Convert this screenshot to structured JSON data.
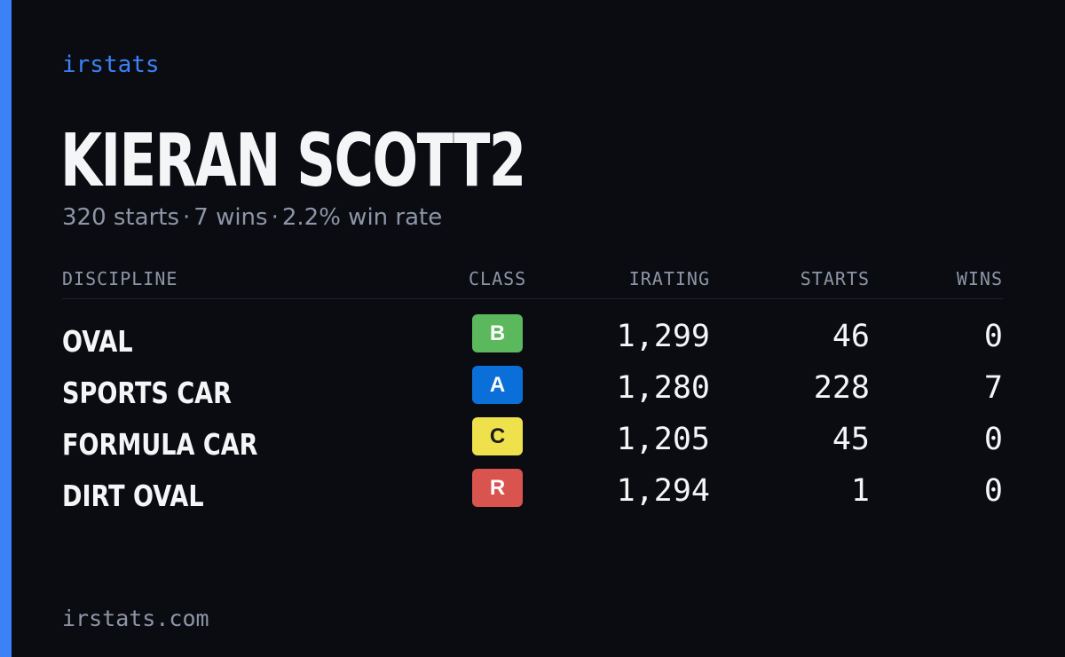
{
  "brand": "irstats",
  "driver": {
    "name": "KIERAN SCOTT2",
    "starts_text": "320 starts",
    "wins_text": "7 wins",
    "win_rate_text": "2.2% win rate",
    "separator": "·"
  },
  "table": {
    "headers": {
      "discipline": "DISCIPLINE",
      "class": "CLASS",
      "irating": "IRATING",
      "starts": "STARTS",
      "wins": "WINS"
    },
    "rows": [
      {
        "discipline": "OVAL",
        "class": "B",
        "class_color": "#5cb85c",
        "class_text_color": "#ffffff",
        "irating": "1,299",
        "starts": "46",
        "wins": "0"
      },
      {
        "discipline": "SPORTS CAR",
        "class": "A",
        "class_color": "#0a6fd8",
        "class_text_color": "#ffffff",
        "irating": "1,280",
        "starts": "228",
        "wins": "7"
      },
      {
        "discipline": "FORMULA CAR",
        "class": "C",
        "class_color": "#efe14c",
        "class_text_color": "#1a1a1a",
        "irating": "1,205",
        "starts": "45",
        "wins": "0"
      },
      {
        "discipline": "DIRT OVAL",
        "class": "R",
        "class_color": "#d9534f",
        "class_text_color": "#ffffff",
        "irating": "1,294",
        "starts": "1",
        "wins": "0"
      }
    ]
  },
  "footer": "irstats.com",
  "colors": {
    "background": "#0a0c12",
    "accent": "#3b82f6",
    "text_primary": "#f4f5f7",
    "text_muted": "#8d95a6"
  }
}
